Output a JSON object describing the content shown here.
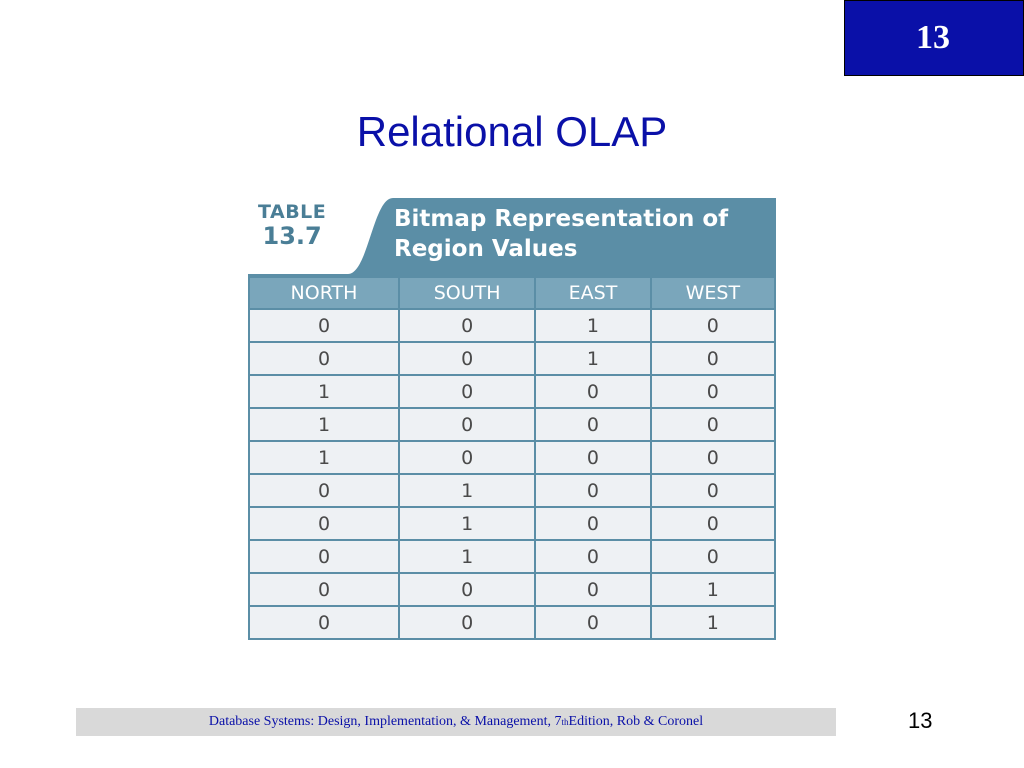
{
  "chapter_badge": "13",
  "slide_title": "Relational OLAP",
  "figure": {
    "table_word": "TABLE",
    "table_number": "13.7",
    "title_line1": "Bitmap Representation of",
    "title_line2": "Region Values",
    "columns": [
      "NORTH",
      "SOUTH",
      "EAST",
      "WEST"
    ],
    "rows": [
      [
        "0",
        "0",
        "1",
        "0"
      ],
      [
        "0",
        "0",
        "1",
        "0"
      ],
      [
        "1",
        "0",
        "0",
        "0"
      ],
      [
        "1",
        "0",
        "0",
        "0"
      ],
      [
        "1",
        "0",
        "0",
        "0"
      ],
      [
        "0",
        "1",
        "0",
        "0"
      ],
      [
        "0",
        "1",
        "0",
        "0"
      ],
      [
        "0",
        "1",
        "0",
        "0"
      ],
      [
        "0",
        "0",
        "0",
        "1"
      ],
      [
        "0",
        "0",
        "0",
        "1"
      ]
    ]
  },
  "footer": {
    "text_before_sup": "Database Systems: Design, Implementation, & Management, 7",
    "sup": "th",
    "text_after_sup": " Edition, Rob & Coronel"
  },
  "page_number": "13",
  "colors": {
    "accent_blue": "#0a10a8",
    "table_teal": "#5b8ea6",
    "header_fill": "#7aa6bb"
  }
}
